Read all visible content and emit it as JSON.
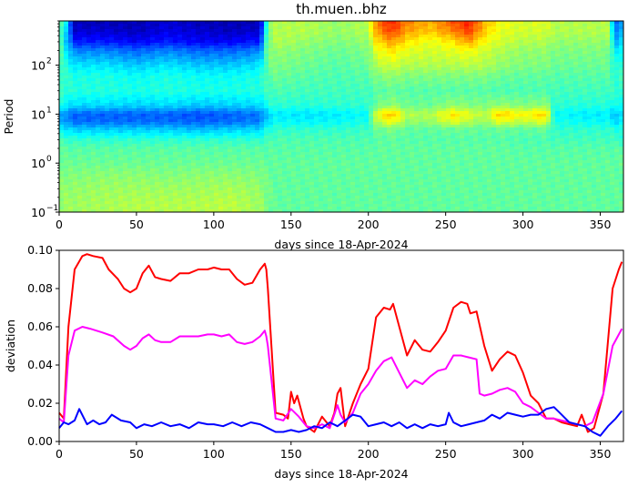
{
  "chart_data": [
    {
      "type": "heatmap",
      "title": "th.muen..bhz",
      "xlabel": "days since 18-Apr-2024",
      "ylabel": "Period",
      "xlim": [
        0,
        365
      ],
      "ylim": [
        0.1,
        800
      ],
      "yscale": "log",
      "colormap": "jet",
      "x_ticks": [
        0,
        50,
        100,
        150,
        200,
        250,
        300,
        350
      ],
      "x_tick_labels": [
        "0",
        "50",
        "100",
        "150",
        "200",
        "250",
        "300",
        "350"
      ],
      "y_ticks": [
        0.1,
        1,
        10,
        100
      ],
      "y_tick_labels": [
        "10",
        "10",
        "10",
        "10"
      ],
      "y_tick_exponents": [
        "−1",
        "0",
        "1",
        "2"
      ],
      "period_rows": [
        800,
        500,
        300,
        200,
        100,
        60,
        30,
        15,
        10,
        7,
        5,
        3,
        2,
        1,
        0.6,
        0.3,
        0.15,
        0.1
      ],
      "day_columns": [
        0,
        5,
        10,
        30,
        50,
        70,
        90,
        110,
        130,
        135,
        140,
        160,
        180,
        200,
        205,
        215,
        225,
        240,
        255,
        265,
        275,
        285,
        300,
        315,
        320,
        340,
        355,
        360,
        365
      ],
      "intensity": [
        [
          0.5,
          0.35,
          0.05,
          0.05,
          0.05,
          0.08,
          0.05,
          0.05,
          0.05,
          0.5,
          0.55,
          0.55,
          0.52,
          0.55,
          0.75,
          0.85,
          0.75,
          0.7,
          0.8,
          0.85,
          0.7,
          0.62,
          0.58,
          0.6,
          0.55,
          0.55,
          0.55,
          0.2,
          0.3
        ],
        [
          0.5,
          0.3,
          0.08,
          0.08,
          0.06,
          0.1,
          0.08,
          0.06,
          0.08,
          0.5,
          0.55,
          0.55,
          0.52,
          0.55,
          0.72,
          0.82,
          0.72,
          0.68,
          0.75,
          0.82,
          0.68,
          0.6,
          0.58,
          0.58,
          0.55,
          0.55,
          0.55,
          0.25,
          0.3
        ],
        [
          0.5,
          0.3,
          0.15,
          0.15,
          0.12,
          0.15,
          0.12,
          0.12,
          0.15,
          0.5,
          0.55,
          0.52,
          0.5,
          0.52,
          0.65,
          0.72,
          0.65,
          0.6,
          0.65,
          0.72,
          0.62,
          0.58,
          0.55,
          0.55,
          0.52,
          0.52,
          0.52,
          0.3,
          0.35
        ],
        [
          0.48,
          0.35,
          0.25,
          0.25,
          0.22,
          0.25,
          0.22,
          0.22,
          0.25,
          0.5,
          0.52,
          0.5,
          0.48,
          0.5,
          0.6,
          0.65,
          0.6,
          0.58,
          0.6,
          0.62,
          0.58,
          0.55,
          0.52,
          0.52,
          0.5,
          0.5,
          0.5,
          0.35,
          0.4
        ],
        [
          0.45,
          0.4,
          0.35,
          0.35,
          0.32,
          0.35,
          0.32,
          0.32,
          0.35,
          0.48,
          0.5,
          0.48,
          0.46,
          0.48,
          0.55,
          0.58,
          0.55,
          0.55,
          0.55,
          0.56,
          0.55,
          0.52,
          0.5,
          0.5,
          0.48,
          0.48,
          0.48,
          0.4,
          0.42
        ],
        [
          0.45,
          0.42,
          0.4,
          0.4,
          0.38,
          0.4,
          0.38,
          0.38,
          0.4,
          0.46,
          0.48,
          0.46,
          0.45,
          0.46,
          0.5,
          0.52,
          0.5,
          0.5,
          0.5,
          0.5,
          0.5,
          0.48,
          0.47,
          0.47,
          0.46,
          0.46,
          0.46,
          0.42,
          0.44
        ],
        [
          0.44,
          0.42,
          0.41,
          0.41,
          0.4,
          0.41,
          0.4,
          0.4,
          0.41,
          0.44,
          0.45,
          0.44,
          0.44,
          0.44,
          0.46,
          0.47,
          0.46,
          0.46,
          0.46,
          0.46,
          0.46,
          0.45,
          0.45,
          0.45,
          0.44,
          0.44,
          0.44,
          0.42,
          0.43
        ],
        [
          0.4,
          0.36,
          0.34,
          0.34,
          0.33,
          0.34,
          0.32,
          0.33,
          0.34,
          0.4,
          0.42,
          0.41,
          0.42,
          0.42,
          0.48,
          0.52,
          0.48,
          0.48,
          0.52,
          0.5,
          0.5,
          0.52,
          0.5,
          0.52,
          0.42,
          0.41,
          0.41,
          0.38,
          0.4
        ],
        [
          0.3,
          0.25,
          0.22,
          0.22,
          0.22,
          0.22,
          0.2,
          0.22,
          0.24,
          0.33,
          0.36,
          0.35,
          0.36,
          0.38,
          0.6,
          0.7,
          0.55,
          0.55,
          0.65,
          0.6,
          0.55,
          0.68,
          0.62,
          0.68,
          0.38,
          0.36,
          0.36,
          0.32,
          0.34
        ],
        [
          0.32,
          0.26,
          0.23,
          0.23,
          0.23,
          0.23,
          0.22,
          0.23,
          0.25,
          0.35,
          0.38,
          0.37,
          0.38,
          0.4,
          0.55,
          0.62,
          0.52,
          0.52,
          0.6,
          0.55,
          0.52,
          0.6,
          0.56,
          0.6,
          0.4,
          0.38,
          0.38,
          0.34,
          0.36
        ],
        [
          0.38,
          0.34,
          0.32,
          0.32,
          0.32,
          0.32,
          0.3,
          0.32,
          0.33,
          0.4,
          0.42,
          0.42,
          0.42,
          0.43,
          0.48,
          0.5,
          0.47,
          0.47,
          0.48,
          0.48,
          0.47,
          0.48,
          0.47,
          0.48,
          0.42,
          0.42,
          0.42,
          0.4,
          0.41
        ],
        [
          0.44,
          0.43,
          0.42,
          0.42,
          0.42,
          0.42,
          0.42,
          0.42,
          0.42,
          0.44,
          0.45,
          0.45,
          0.45,
          0.45,
          0.46,
          0.47,
          0.46,
          0.46,
          0.46,
          0.46,
          0.46,
          0.46,
          0.45,
          0.45,
          0.44,
          0.44,
          0.44,
          0.43,
          0.43
        ],
        [
          0.47,
          0.46,
          0.46,
          0.46,
          0.46,
          0.46,
          0.46,
          0.46,
          0.46,
          0.46,
          0.46,
          0.46,
          0.46,
          0.46,
          0.47,
          0.47,
          0.47,
          0.47,
          0.47,
          0.47,
          0.47,
          0.47,
          0.46,
          0.46,
          0.46,
          0.46,
          0.46,
          0.46,
          0.46
        ],
        [
          0.49,
          0.48,
          0.48,
          0.48,
          0.48,
          0.48,
          0.48,
          0.48,
          0.48,
          0.47,
          0.47,
          0.47,
          0.47,
          0.47,
          0.47,
          0.47,
          0.47,
          0.47,
          0.47,
          0.47,
          0.47,
          0.47,
          0.47,
          0.47,
          0.47,
          0.47,
          0.47,
          0.47,
          0.47
        ],
        [
          0.5,
          0.5,
          0.5,
          0.51,
          0.51,
          0.5,
          0.51,
          0.51,
          0.5,
          0.48,
          0.47,
          0.47,
          0.47,
          0.47,
          0.47,
          0.47,
          0.47,
          0.47,
          0.47,
          0.47,
          0.47,
          0.47,
          0.47,
          0.47,
          0.47,
          0.47,
          0.47,
          0.47,
          0.47
        ],
        [
          0.51,
          0.52,
          0.52,
          0.53,
          0.53,
          0.53,
          0.53,
          0.54,
          0.52,
          0.49,
          0.47,
          0.47,
          0.47,
          0.47,
          0.47,
          0.47,
          0.47,
          0.47,
          0.47,
          0.47,
          0.47,
          0.47,
          0.47,
          0.47,
          0.47,
          0.47,
          0.47,
          0.47,
          0.47
        ],
        [
          0.52,
          0.53,
          0.53,
          0.54,
          0.55,
          0.55,
          0.55,
          0.56,
          0.53,
          0.49,
          0.47,
          0.47,
          0.47,
          0.47,
          0.47,
          0.47,
          0.47,
          0.47,
          0.47,
          0.47,
          0.47,
          0.47,
          0.47,
          0.47,
          0.47,
          0.47,
          0.47,
          0.47,
          0.47
        ],
        [
          0.52,
          0.53,
          0.53,
          0.54,
          0.55,
          0.55,
          0.55,
          0.56,
          0.53,
          0.49,
          0.47,
          0.47,
          0.47,
          0.47,
          0.47,
          0.47,
          0.47,
          0.47,
          0.47,
          0.47,
          0.47,
          0.47,
          0.47,
          0.47,
          0.47,
          0.47,
          0.47,
          0.47,
          0.47
        ]
      ]
    },
    {
      "type": "line",
      "title": "",
      "xlabel": "days since 18-Apr-2024",
      "ylabel": "deviation",
      "xlim": [
        0,
        365
      ],
      "ylim": [
        0,
        0.1
      ],
      "x_ticks": [
        0,
        50,
        100,
        150,
        200,
        250,
        300,
        350
      ],
      "x_tick_labels": [
        "0",
        "50",
        "100",
        "150",
        "200",
        "250",
        "300",
        "350"
      ],
      "y_ticks": [
        0,
        0.02,
        0.04,
        0.06,
        0.08,
        0.1
      ],
      "y_tick_labels": [
        "0.00",
        "0.02",
        "0.04",
        "0.06",
        "0.08",
        "0.10"
      ],
      "series": [
        {
          "color": "#ff0000",
          "x": [
            0,
            3,
            6,
            10,
            15,
            18,
            22,
            28,
            32,
            38,
            42,
            46,
            50,
            54,
            58,
            62,
            66,
            72,
            78,
            84,
            90,
            96,
            100,
            105,
            110,
            115,
            120,
            125,
            130,
            133,
            134,
            135,
            140,
            145,
            148,
            150,
            152,
            154,
            158,
            160,
            165,
            170,
            175,
            178,
            180,
            182,
            185,
            190,
            195,
            200,
            205,
            210,
            214,
            216,
            218,
            220,
            225,
            230,
            235,
            240,
            245,
            250,
            255,
            260,
            264,
            266,
            270,
            275,
            280,
            285,
            290,
            295,
            300,
            305,
            310,
            315,
            320,
            325,
            330,
            335,
            338,
            342,
            346,
            352,
            358,
            362,
            364
          ],
          "values": [
            0.015,
            0.012,
            0.06,
            0.09,
            0.097,
            0.098,
            0.097,
            0.096,
            0.09,
            0.085,
            0.08,
            0.078,
            0.08,
            0.088,
            0.092,
            0.086,
            0.085,
            0.084,
            0.088,
            0.088,
            0.09,
            0.09,
            0.091,
            0.09,
            0.09,
            0.085,
            0.082,
            0.083,
            0.09,
            0.093,
            0.09,
            0.08,
            0.015,
            0.014,
            0.012,
            0.026,
            0.02,
            0.024,
            0.012,
            0.008,
            0.005,
            0.013,
            0.008,
            0.015,
            0.025,
            0.028,
            0.008,
            0.02,
            0.03,
            0.038,
            0.065,
            0.07,
            0.069,
            0.072,
            0.066,
            0.06,
            0.045,
            0.053,
            0.048,
            0.047,
            0.052,
            0.058,
            0.07,
            0.073,
            0.072,
            0.067,
            0.068,
            0.05,
            0.037,
            0.043,
            0.047,
            0.045,
            0.036,
            0.024,
            0.02,
            0.012,
            0.012,
            0.01,
            0.009,
            0.008,
            0.014,
            0.005,
            0.007,
            0.025,
            0.08,
            0.09,
            0.094
          ]
        },
        {
          "color": "#ff00ff",
          "x": [
            0,
            3,
            6,
            10,
            15,
            20,
            28,
            35,
            42,
            46,
            50,
            54,
            58,
            62,
            66,
            72,
            78,
            84,
            90,
            96,
            100,
            105,
            110,
            115,
            120,
            125,
            130,
            133,
            134,
            135,
            140,
            145,
            150,
            155,
            160,
            165,
            170,
            175,
            180,
            182,
            185,
            190,
            195,
            200,
            205,
            210,
            215,
            220,
            225,
            230,
            235,
            240,
            245,
            250,
            255,
            260,
            265,
            270,
            272,
            275,
            280,
            285,
            290,
            295,
            300,
            305,
            310,
            315,
            320,
            330,
            340,
            345,
            352,
            358,
            364
          ],
          "values": [
            0.012,
            0.01,
            0.045,
            0.058,
            0.06,
            0.059,
            0.057,
            0.055,
            0.05,
            0.048,
            0.05,
            0.054,
            0.056,
            0.053,
            0.052,
            0.052,
            0.055,
            0.055,
            0.055,
            0.056,
            0.056,
            0.055,
            0.056,
            0.052,
            0.051,
            0.052,
            0.055,
            0.058,
            0.055,
            0.05,
            0.012,
            0.011,
            0.017,
            0.013,
            0.008,
            0.007,
            0.009,
            0.007,
            0.019,
            0.014,
            0.01,
            0.015,
            0.025,
            0.03,
            0.037,
            0.042,
            0.044,
            0.036,
            0.028,
            0.032,
            0.03,
            0.034,
            0.037,
            0.038,
            0.045,
            0.045,
            0.044,
            0.043,
            0.025,
            0.024,
            0.025,
            0.027,
            0.028,
            0.026,
            0.02,
            0.018,
            0.015,
            0.012,
            0.012,
            0.01,
            0.008,
            0.01,
            0.025,
            0.05,
            0.059
          ]
        },
        {
          "color": "#0000ff",
          "x": [
            0,
            3,
            6,
            10,
            13,
            18,
            22,
            26,
            30,
            34,
            40,
            46,
            50,
            55,
            60,
            66,
            72,
            78,
            84,
            90,
            96,
            100,
            106,
            112,
            118,
            124,
            130,
            135,
            140,
            145,
            150,
            155,
            160,
            165,
            170,
            175,
            180,
            185,
            190,
            195,
            200,
            205,
            210,
            215,
            220,
            225,
            230,
            235,
            240,
            245,
            250,
            252,
            255,
            260,
            265,
            270,
            275,
            280,
            285,
            290,
            295,
            300,
            305,
            310,
            315,
            320,
            325,
            330,
            335,
            340,
            345,
            350,
            355,
            360,
            364
          ],
          "values": [
            0.007,
            0.01,
            0.009,
            0.011,
            0.017,
            0.009,
            0.011,
            0.009,
            0.01,
            0.014,
            0.011,
            0.01,
            0.007,
            0.009,
            0.008,
            0.01,
            0.008,
            0.009,
            0.007,
            0.01,
            0.009,
            0.009,
            0.008,
            0.01,
            0.008,
            0.01,
            0.009,
            0.007,
            0.005,
            0.005,
            0.006,
            0.005,
            0.006,
            0.008,
            0.007,
            0.01,
            0.008,
            0.011,
            0.014,
            0.013,
            0.008,
            0.009,
            0.01,
            0.008,
            0.01,
            0.007,
            0.009,
            0.007,
            0.009,
            0.008,
            0.009,
            0.015,
            0.01,
            0.008,
            0.009,
            0.01,
            0.011,
            0.014,
            0.012,
            0.015,
            0.014,
            0.013,
            0.014,
            0.014,
            0.017,
            0.018,
            0.014,
            0.01,
            0.009,
            0.008,
            0.005,
            0.003,
            0.008,
            0.012,
            0.016
          ]
        }
      ]
    }
  ]
}
